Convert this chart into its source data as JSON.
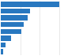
{
  "values": [
    76,
    38,
    35,
    30,
    27,
    13,
    6,
    3
  ],
  "bar_color": "#2878c0",
  "background_color": "#ffffff",
  "grid_color": "#e0e0e0",
  "bar_height": 0.75,
  "xlim": [
    0,
    100
  ]
}
